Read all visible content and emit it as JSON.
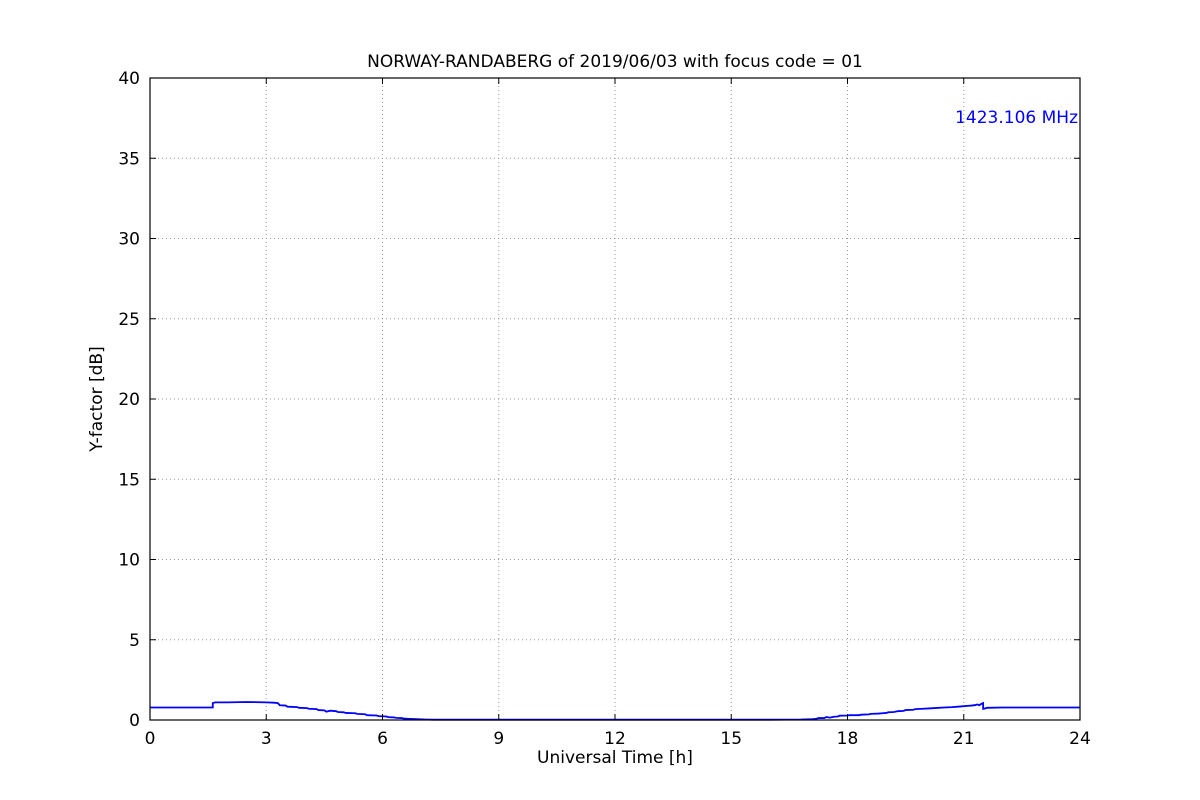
{
  "chart_data": {
    "type": "line",
    "title": "NORWAY-RANDABERG of 2019/06/03 with focus code = 01",
    "xlabel": "Universal Time [h]",
    "ylabel": "Y-factor [dB]",
    "xlim": [
      0,
      24
    ],
    "ylim": [
      0,
      40
    ],
    "xticks": [
      0,
      3,
      6,
      9,
      12,
      15,
      18,
      21,
      24
    ],
    "yticks": [
      0,
      5,
      10,
      15,
      20,
      25,
      30,
      35,
      40
    ],
    "grid": true,
    "grid_style": "dotted",
    "frame_color": "#000000",
    "legend_position": "none",
    "annotation": {
      "text": "1423.106 MHz",
      "color": "#0000ff",
      "position": "top-right"
    },
    "series": [
      {
        "name": "1423.106 MHz",
        "color": "#0000ff",
        "points": [
          [
            0,
            0.78
          ],
          [
            1.62,
            0.78
          ],
          [
            1.62,
            1.05
          ],
          [
            1.68,
            1.1
          ],
          [
            2.0,
            1.1
          ],
          [
            2.5,
            1.12
          ],
          [
            3.0,
            1.1
          ],
          [
            3.2,
            1.08
          ],
          [
            3.3,
            1.05
          ],
          [
            3.35,
            0.92
          ],
          [
            3.5,
            0.9
          ],
          [
            3.55,
            0.83
          ],
          [
            3.8,
            0.8
          ],
          [
            3.85,
            0.76
          ],
          [
            4.05,
            0.74
          ],
          [
            4.1,
            0.7
          ],
          [
            4.3,
            0.68
          ],
          [
            4.35,
            0.62
          ],
          [
            4.5,
            0.6
          ],
          [
            4.55,
            0.52
          ],
          [
            4.65,
            0.58
          ],
          [
            4.8,
            0.55
          ],
          [
            4.85,
            0.5
          ],
          [
            5.0,
            0.48
          ],
          [
            5.05,
            0.44
          ],
          [
            5.3,
            0.42
          ],
          [
            5.35,
            0.38
          ],
          [
            5.55,
            0.36
          ],
          [
            5.6,
            0.3
          ],
          [
            5.85,
            0.28
          ],
          [
            5.9,
            0.24
          ],
          [
            6.1,
            0.22
          ],
          [
            6.15,
            0.18
          ],
          [
            6.3,
            0.16
          ],
          [
            6.35,
            0.13
          ],
          [
            6.5,
            0.12
          ],
          [
            6.55,
            0.09
          ],
          [
            6.7,
            0.07
          ],
          [
            6.9,
            0.05
          ],
          [
            7.1,
            0.03
          ],
          [
            7.3,
            0.02
          ],
          [
            8,
            0.02
          ],
          [
            9,
            0.02
          ],
          [
            10,
            0.02
          ],
          [
            11,
            0.02
          ],
          [
            12,
            0.02
          ],
          [
            13,
            0.02
          ],
          [
            14,
            0.02
          ],
          [
            15,
            0.02
          ],
          [
            16,
            0.02
          ],
          [
            16.8,
            0.03
          ],
          [
            17.1,
            0.05
          ],
          [
            17.2,
            0.08
          ],
          [
            17.25,
            0.12
          ],
          [
            17.4,
            0.12
          ],
          [
            17.45,
            0.18
          ],
          [
            17.55,
            0.15
          ],
          [
            17.65,
            0.2
          ],
          [
            17.75,
            0.22
          ],
          [
            17.8,
            0.27
          ],
          [
            18.0,
            0.28
          ],
          [
            18.05,
            0.3
          ],
          [
            18.3,
            0.3
          ],
          [
            18.35,
            0.33
          ],
          [
            18.55,
            0.35
          ],
          [
            18.6,
            0.38
          ],
          [
            18.8,
            0.4
          ],
          [
            18.9,
            0.42
          ],
          [
            19.0,
            0.44
          ],
          [
            19.05,
            0.48
          ],
          [
            19.2,
            0.5
          ],
          [
            19.3,
            0.55
          ],
          [
            19.45,
            0.57
          ],
          [
            19.5,
            0.62
          ],
          [
            19.7,
            0.64
          ],
          [
            19.75,
            0.68
          ],
          [
            19.95,
            0.7
          ],
          [
            20.1,
            0.72
          ],
          [
            20.3,
            0.75
          ],
          [
            20.5,
            0.78
          ],
          [
            20.7,
            0.8
          ],
          [
            20.85,
            0.83
          ],
          [
            21.0,
            0.86
          ],
          [
            21.1,
            0.88
          ],
          [
            21.2,
            0.9
          ],
          [
            21.3,
            0.93
          ],
          [
            21.35,
            0.97
          ],
          [
            21.4,
            0.92
          ],
          [
            21.45,
            1.0
          ],
          [
            21.5,
            1.05
          ],
          [
            21.5,
            0.7
          ],
          [
            21.55,
            0.72
          ],
          [
            21.6,
            0.76
          ],
          [
            22.0,
            0.78
          ],
          [
            24,
            0.78
          ]
        ]
      }
    ]
  }
}
